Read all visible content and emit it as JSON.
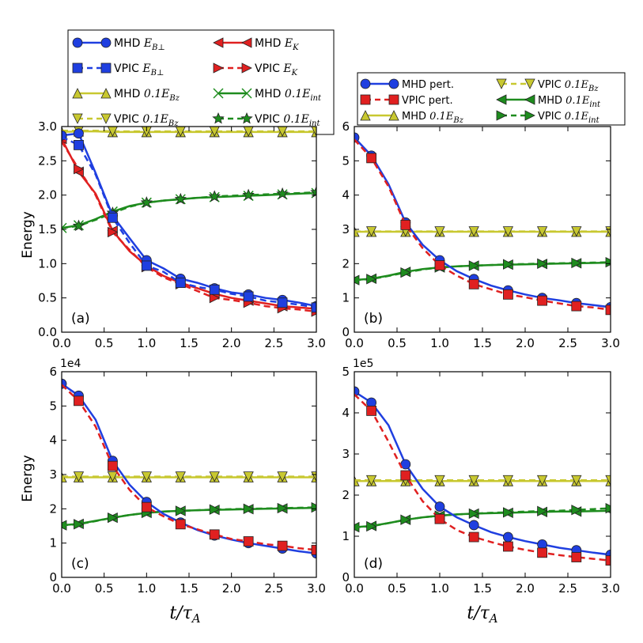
{
  "figure": {
    "xlabel": "t/τ_A",
    "ylabel": "Energy"
  },
  "legends": {
    "left": [
      {
        "label": "MHD E_B⊥",
        "color": "#1f3fe0",
        "style": "solid",
        "marker": "circle"
      },
      {
        "label": "MHD E_K",
        "color": "#e02020",
        "style": "solid",
        "marker": "tri-left"
      },
      {
        "label": "VPIC E_B⊥",
        "color": "#1f3fe0",
        "style": "dashed",
        "marker": "square"
      },
      {
        "label": "VPIC E_K",
        "color": "#e02020",
        "style": "dashed",
        "marker": "tri-right"
      },
      {
        "label": "MHD 0.1E_Bz",
        "color": "#c8c830",
        "style": "solid",
        "marker": "tri-up"
      },
      {
        "label": "MHD 0.1E_int",
        "color": "#1e8c1e",
        "style": "solid",
        "marker": "x"
      },
      {
        "label": "VPIC 0.1E_Bz",
        "color": "#c8c830",
        "style": "dashed",
        "marker": "tri-down"
      },
      {
        "label": "VPIC 0.1E_int",
        "color": "#1e8c1e",
        "style": "dashed",
        "marker": "star"
      }
    ],
    "right": [
      {
        "label": "MHD pert.",
        "color": "#1f3fe0",
        "style": "solid",
        "marker": "circle"
      },
      {
        "label": "VPIC 0.1E_Bz",
        "color": "#c8c830",
        "style": "dashed",
        "marker": "tri-down"
      },
      {
        "label": "VPIC pert.",
        "color": "#e02020",
        "style": "dashed",
        "marker": "square"
      },
      {
        "label": "MHD 0.1E_int",
        "color": "#1e8c1e",
        "style": "solid",
        "marker": "tri-left"
      },
      {
        "label": "MHD 0.1E_Bz",
        "color": "#c8c830",
        "style": "solid",
        "marker": "tri-up"
      },
      {
        "label": "VPIC 0.1E_int",
        "color": "#1e8c1e",
        "style": "dashed",
        "marker": "tri-right"
      }
    ]
  },
  "chart_data": [
    {
      "type": "line",
      "panel_label": "(a)",
      "xlim": [
        0,
        3
      ],
      "ylim": [
        0,
        3
      ],
      "xticks": [
        "0.0",
        "0.5",
        "1.0",
        "1.5",
        "2.0",
        "2.5",
        "3.0"
      ],
      "yticks": [
        "0.0",
        "0.5",
        "1.0",
        "1.5",
        "2.0",
        "2.5",
        "3.0"
      ],
      "exponent": "",
      "x": [
        0,
        0.2,
        0.4,
        0.6,
        0.8,
        1.0,
        1.2,
        1.4,
        1.6,
        1.8,
        2.0,
        2.2,
        2.4,
        2.6,
        2.8,
        3.0
      ],
      "series": [
        {
          "name": "MHD 0.1E_Bz",
          "color": "#c8c830",
          "style": "solid",
          "marker": "tri-up",
          "values": [
            2.92,
            2.93,
            2.93,
            2.92,
            2.92,
            2.92,
            2.92,
            2.92,
            2.92,
            2.92,
            2.92,
            2.92,
            2.92,
            2.92,
            2.92,
            2.92
          ]
        },
        {
          "name": "VPIC 0.1E_Bz",
          "color": "#c8c830",
          "style": "dashed",
          "marker": "tri-down",
          "values": [
            2.94,
            2.94,
            2.94,
            2.93,
            2.93,
            2.93,
            2.93,
            2.93,
            2.93,
            2.93,
            2.93,
            2.93,
            2.93,
            2.93,
            2.93,
            2.93
          ]
        },
        {
          "name": "MHD 0.1E_int",
          "color": "#1e8c1e",
          "style": "solid",
          "marker": "x",
          "values": [
            1.52,
            1.56,
            1.65,
            1.76,
            1.84,
            1.89,
            1.92,
            1.94,
            1.96,
            1.97,
            1.98,
            1.99,
            2.0,
            2.01,
            2.02,
            2.03
          ]
        },
        {
          "name": "VPIC 0.1E_int",
          "color": "#1e8c1e",
          "style": "dashed",
          "marker": "star",
          "values": [
            1.52,
            1.55,
            1.64,
            1.74,
            1.83,
            1.89,
            1.92,
            1.94,
            1.96,
            1.98,
            1.99,
            2.0,
            2.01,
            2.02,
            2.03,
            2.04
          ]
        },
        {
          "name": "MHD E_K",
          "color": "#e02020",
          "style": "solid",
          "marker": "tri-left",
          "values": [
            2.82,
            2.34,
            2.02,
            1.48,
            1.18,
            0.97,
            0.82,
            0.72,
            0.64,
            0.56,
            0.5,
            0.46,
            0.42,
            0.38,
            0.36,
            0.34
          ]
        },
        {
          "name": "VPIC E_K",
          "color": "#e02020",
          "style": "dashed",
          "marker": "tri-right",
          "values": [
            2.78,
            2.38,
            2.0,
            1.46,
            1.2,
            0.95,
            0.8,
            0.7,
            0.6,
            0.5,
            0.47,
            0.43,
            0.38,
            0.35,
            0.33,
            0.3
          ]
        },
        {
          "name": "MHD E_B⊥",
          "color": "#1f3fe0",
          "style": "solid",
          "marker": "circle",
          "values": [
            2.87,
            2.9,
            2.32,
            1.7,
            1.37,
            1.05,
            0.93,
            0.78,
            0.72,
            0.64,
            0.58,
            0.55,
            0.5,
            0.47,
            0.43,
            0.38
          ]
        },
        {
          "name": "VPIC E_B⊥",
          "color": "#1f3fe0",
          "style": "dashed",
          "marker": "square",
          "values": [
            2.85,
            2.73,
            2.3,
            1.67,
            1.3,
            0.97,
            0.88,
            0.72,
            0.66,
            0.62,
            0.56,
            0.52,
            0.46,
            0.43,
            0.4,
            0.36
          ]
        }
      ]
    },
    {
      "type": "line",
      "panel_label": "(b)",
      "xlim": [
        0,
        3
      ],
      "ylim": [
        0,
        6
      ],
      "xticks": [
        "0.0",
        "0.5",
        "1.0",
        "1.5",
        "2.0",
        "2.5",
        "3.0"
      ],
      "yticks": [
        "0",
        "1",
        "2",
        "3",
        "4",
        "5",
        "6"
      ],
      "exponent": "",
      "x": [
        0,
        0.2,
        0.4,
        0.6,
        0.8,
        1.0,
        1.2,
        1.4,
        1.6,
        1.8,
        2.0,
        2.2,
        2.4,
        2.6,
        2.8,
        3.0
      ],
      "series": [
        {
          "name": "MHD 0.1E_Bz",
          "color": "#c8c830",
          "style": "solid",
          "marker": "tri-up",
          "values": [
            2.93,
            2.93,
            2.93,
            2.93,
            2.93,
            2.93,
            2.93,
            2.93,
            2.93,
            2.93,
            2.93,
            2.93,
            2.93,
            2.93,
            2.93,
            2.93
          ]
        },
        {
          "name": "VPIC 0.1E_Bz",
          "color": "#c8c830",
          "style": "dashed",
          "marker": "tri-down",
          "values": [
            2.94,
            2.94,
            2.94,
            2.94,
            2.94,
            2.94,
            2.94,
            2.94,
            2.94,
            2.94,
            2.94,
            2.94,
            2.94,
            2.94,
            2.94,
            2.94
          ]
        },
        {
          "name": "MHD 0.1E_int",
          "color": "#1e8c1e",
          "style": "solid",
          "marker": "tri-left",
          "values": [
            1.52,
            1.56,
            1.65,
            1.76,
            1.84,
            1.89,
            1.92,
            1.94,
            1.96,
            1.97,
            1.98,
            1.99,
            2.0,
            2.01,
            2.02,
            2.03
          ]
        },
        {
          "name": "VPIC 0.1E_int",
          "color": "#1e8c1e",
          "style": "dashed",
          "marker": "tri-right",
          "values": [
            1.52,
            1.55,
            1.64,
            1.74,
            1.83,
            1.89,
            1.92,
            1.94,
            1.96,
            1.98,
            1.99,
            2.0,
            2.01,
            2.02,
            2.03,
            2.04
          ]
        },
        {
          "name": "MHD pert.",
          "color": "#1f3fe0",
          "style": "solid",
          "marker": "circle",
          "values": [
            5.68,
            5.15,
            4.32,
            3.2,
            2.55,
            2.1,
            1.78,
            1.55,
            1.36,
            1.22,
            1.1,
            1.0,
            0.93,
            0.85,
            0.79,
            0.73
          ]
        },
        {
          "name": "VPIC pert.",
          "color": "#e02020",
          "style": "dashed",
          "marker": "square",
          "values": [
            5.62,
            5.08,
            4.25,
            3.13,
            2.45,
            1.95,
            1.65,
            1.4,
            1.25,
            1.1,
            1.02,
            0.92,
            0.84,
            0.76,
            0.72,
            0.65
          ]
        }
      ]
    },
    {
      "type": "line",
      "panel_label": "(c)",
      "xlim": [
        0,
        3
      ],
      "ylim": [
        0,
        6
      ],
      "xticks": [
        "0.0",
        "0.5",
        "1.0",
        "1.5",
        "2.0",
        "2.5",
        "3.0"
      ],
      "yticks": [
        "0",
        "1",
        "2",
        "3",
        "4",
        "5",
        "6"
      ],
      "exponent": "1e4",
      "x": [
        0,
        0.2,
        0.4,
        0.6,
        0.8,
        1.0,
        1.2,
        1.4,
        1.6,
        1.8,
        2.0,
        2.2,
        2.4,
        2.6,
        2.8,
        3.0
      ],
      "series": [
        {
          "name": "MHD 0.1E_Bz",
          "color": "#c8c830",
          "style": "solid",
          "marker": "tri-up",
          "values": [
            2.92,
            2.92,
            2.92,
            2.92,
            2.92,
            2.92,
            2.92,
            2.92,
            2.92,
            2.92,
            2.92,
            2.92,
            2.92,
            2.92,
            2.92,
            2.92
          ]
        },
        {
          "name": "VPIC 0.1E_Bz",
          "color": "#c8c830",
          "style": "dashed",
          "marker": "tri-down",
          "values": [
            2.94,
            2.94,
            2.94,
            2.94,
            2.94,
            2.94,
            2.94,
            2.94,
            2.94,
            2.94,
            2.94,
            2.94,
            2.94,
            2.94,
            2.94,
            2.94
          ]
        },
        {
          "name": "MHD 0.1E_int",
          "color": "#1e8c1e",
          "style": "solid",
          "marker": "tri-left",
          "values": [
            1.52,
            1.56,
            1.65,
            1.74,
            1.82,
            1.88,
            1.92,
            1.94,
            1.96,
            1.97,
            1.98,
            1.99,
            2.0,
            2.01,
            2.02,
            2.03
          ]
        },
        {
          "name": "VPIC 0.1E_int",
          "color": "#1e8c1e",
          "style": "dashed",
          "marker": "tri-right",
          "values": [
            1.52,
            1.55,
            1.64,
            1.74,
            1.82,
            1.88,
            1.92,
            1.94,
            1.96,
            1.98,
            1.99,
            2.0,
            2.01,
            2.02,
            2.03,
            2.04
          ]
        },
        {
          "name": "MHD pert.",
          "color": "#1f3fe0",
          "style": "solid",
          "marker": "circle",
          "values": [
            5.65,
            5.3,
            4.6,
            3.4,
            2.7,
            2.2,
            1.85,
            1.6,
            1.38,
            1.22,
            1.1,
            1.0,
            0.92,
            0.84,
            0.76,
            0.7
          ]
        },
        {
          "name": "VPIC pert.",
          "color": "#e02020",
          "style": "dashed",
          "marker": "square",
          "values": [
            5.62,
            5.15,
            4.4,
            3.25,
            2.55,
            2.05,
            1.78,
            1.55,
            1.4,
            1.25,
            1.12,
            1.05,
            0.97,
            0.92,
            0.85,
            0.8
          ]
        }
      ]
    },
    {
      "type": "line",
      "panel_label": "(d)",
      "xlim": [
        0,
        3
      ],
      "ylim": [
        0,
        5
      ],
      "xticks": [
        "0.0",
        "0.5",
        "1.0",
        "1.5",
        "2.0",
        "2.5",
        "3.0"
      ],
      "yticks": [
        "0",
        "1",
        "2",
        "3",
        "4",
        "5"
      ],
      "exponent": "1e5",
      "x": [
        0,
        0.2,
        0.4,
        0.6,
        0.8,
        1.0,
        1.2,
        1.4,
        1.6,
        1.8,
        2.0,
        2.2,
        2.4,
        2.6,
        2.8,
        3.0
      ],
      "series": [
        {
          "name": "MHD 0.1E_Bz",
          "color": "#c8c830",
          "style": "solid",
          "marker": "tri-up",
          "values": [
            2.34,
            2.34,
            2.34,
            2.34,
            2.34,
            2.34,
            2.34,
            2.34,
            2.34,
            2.34,
            2.34,
            2.34,
            2.34,
            2.34,
            2.34,
            2.34
          ]
        },
        {
          "name": "VPIC 0.1E_Bz",
          "color": "#c8c830",
          "style": "dashed",
          "marker": "tri-down",
          "values": [
            2.36,
            2.36,
            2.36,
            2.36,
            2.36,
            2.36,
            2.36,
            2.36,
            2.36,
            2.36,
            2.36,
            2.36,
            2.36,
            2.36,
            2.36,
            2.36
          ]
        },
        {
          "name": "MHD 0.1E_int",
          "color": "#1e8c1e",
          "style": "solid",
          "marker": "tri-left",
          "values": [
            1.22,
            1.25,
            1.32,
            1.4,
            1.46,
            1.5,
            1.53,
            1.55,
            1.56,
            1.57,
            1.58,
            1.59,
            1.6,
            1.6,
            1.61,
            1.62
          ]
        },
        {
          "name": "VPIC 0.1E_int",
          "color": "#1e8c1e",
          "style": "dashed",
          "marker": "tri-right",
          "values": [
            1.22,
            1.24,
            1.32,
            1.4,
            1.46,
            1.5,
            1.53,
            1.55,
            1.57,
            1.58,
            1.6,
            1.61,
            1.62,
            1.64,
            1.66,
            1.68
          ]
        },
        {
          "name": "MHD pert.",
          "color": "#1f3fe0",
          "style": "solid",
          "marker": "circle",
          "values": [
            4.52,
            4.25,
            3.7,
            2.75,
            2.15,
            1.72,
            1.46,
            1.27,
            1.1,
            0.98,
            0.88,
            0.8,
            0.72,
            0.66,
            0.6,
            0.55
          ]
        },
        {
          "name": "VPIC pert.",
          "color": "#e02020",
          "style": "dashed",
          "marker": "square",
          "values": [
            4.45,
            4.05,
            3.3,
            2.48,
            1.85,
            1.42,
            1.15,
            0.98,
            0.86,
            0.75,
            0.67,
            0.6,
            0.54,
            0.49,
            0.45,
            0.41
          ]
        }
      ]
    }
  ]
}
